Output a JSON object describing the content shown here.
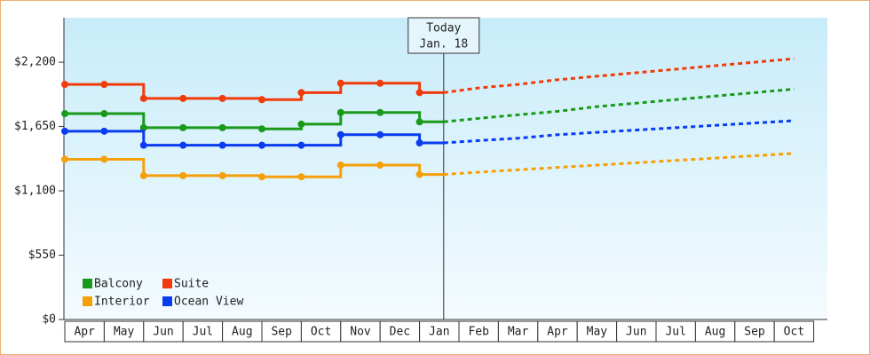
{
  "chart_data": {
    "type": "line",
    "categories": [
      "Apr",
      "May",
      "Jun",
      "Jul",
      "Aug",
      "Sep",
      "Oct",
      "Nov",
      "Dec",
      "Jan",
      "Feb",
      "Mar",
      "Apr",
      "May",
      "Jun",
      "Jul",
      "Aug",
      "Sep",
      "Oct"
    ],
    "annotation": [
      "Today",
      "Jan. 18"
    ],
    "ylim": [
      0,
      2580
    ],
    "yticks": [
      {
        "value": 0,
        "label": "$0"
      },
      {
        "value": 550,
        "label": "$550"
      },
      {
        "value": 1100,
        "label": "$1,100"
      },
      {
        "value": 1650,
        "label": "$1,650"
      },
      {
        "value": 2200,
        "label": "$2,200"
      }
    ],
    "series": [
      {
        "name": "Balcony",
        "color": "#1a9a1a",
        "values": [
          1760,
          1760,
          1640,
          1640,
          1640,
          1630,
          1670,
          1770,
          1770,
          1690,
          null,
          null,
          null,
          null,
          null,
          null,
          null,
          null,
          null
        ],
        "forecast": [
          null,
          null,
          null,
          null,
          null,
          null,
          null,
          null,
          null,
          1690,
          1720,
          1750,
          1780,
          1820,
          1850,
          1880,
          1910,
          1940,
          1970
        ]
      },
      {
        "name": "Suite",
        "color": "#f03c0a",
        "values": [
          2010,
          2010,
          1890,
          1890,
          1890,
          1880,
          1940,
          2020,
          2020,
          1940,
          null,
          null,
          null,
          null,
          null,
          null,
          null,
          null,
          null
        ],
        "forecast": [
          null,
          null,
          null,
          null,
          null,
          null,
          null,
          null,
          null,
          1940,
          1980,
          2010,
          2050,
          2080,
          2110,
          2140,
          2170,
          2200,
          2230
        ]
      },
      {
        "name": "Interior",
        "color": "#f5a00a",
        "values": [
          1370,
          1370,
          1230,
          1230,
          1230,
          1220,
          1220,
          1320,
          1320,
          1240,
          null,
          null,
          null,
          null,
          null,
          null,
          null,
          null,
          null
        ],
        "forecast": [
          null,
          null,
          null,
          null,
          null,
          null,
          null,
          null,
          null,
          1240,
          1260,
          1280,
          1300,
          1320,
          1340,
          1360,
          1380,
          1400,
          1420
        ]
      },
      {
        "name": "Ocean View",
        "color": "#0a3cf0",
        "values": [
          1610,
          1610,
          1490,
          1490,
          1490,
          1490,
          1490,
          1580,
          1580,
          1510,
          null,
          null,
          null,
          null,
          null,
          null,
          null,
          null,
          null
        ],
        "forecast": [
          null,
          null,
          null,
          null,
          null,
          null,
          null,
          null,
          null,
          1510,
          1530,
          1550,
          1580,
          1600,
          1620,
          1640,
          1660,
          1680,
          1700
        ]
      }
    ]
  }
}
